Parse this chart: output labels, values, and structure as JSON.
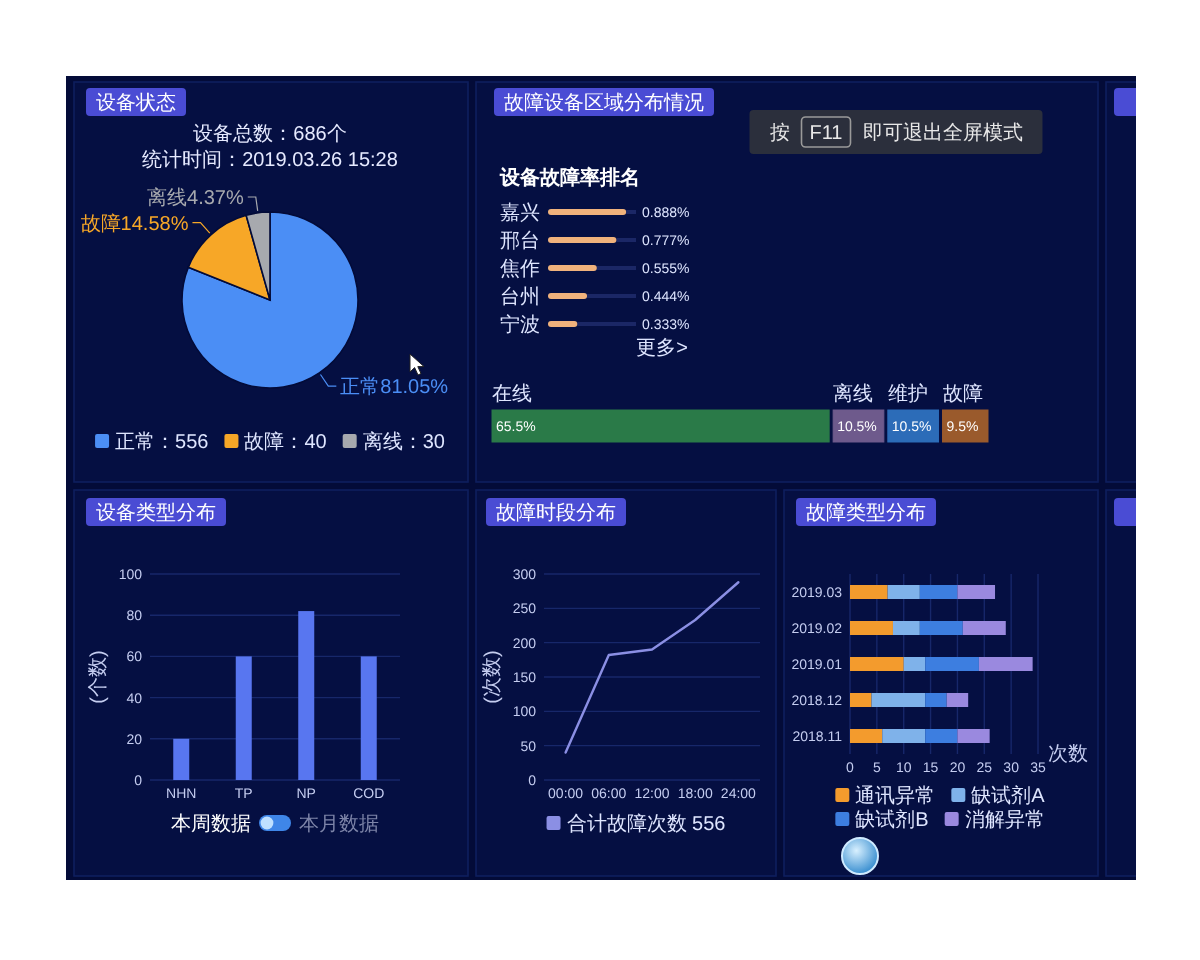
{
  "chart_data": [
    {
      "type": "pie",
      "title": "设备状态",
      "subtitle": "设备总数：686个",
      "categories": [
        "正常",
        "故障",
        "离线"
      ],
      "values": [
        81.05,
        14.58,
        4.37
      ],
      "value_labels": [
        "81.05%",
        "14.58%",
        "4.37%"
      ],
      "colors": [
        "#4b8ef5",
        "#f7a727",
        "#a7a9ae"
      ],
      "legend": "bottom",
      "annotations": [
        "统计时间：2019.03.26 15:28",
        "：556",
        "：40",
        "：30"
      ]
    },
    {
      "type": "bar",
      "orientation": "horizontal",
      "title": "故障设备区域分布情况",
      "subtitle": "设备故障率排名",
      "categories": [
        "嘉兴",
        "邢台",
        "焦作",
        "台州",
        "宁波"
      ],
      "values": [
        0.888,
        0.777,
        0.555,
        0.444,
        0.333
      ],
      "value_labels": [
        "0.888%",
        "0.777%",
        "0.555%",
        "0.444%",
        "0.333%"
      ],
      "color": "#f0b27c",
      "xlim": [
        0,
        1
      ],
      "annotations": [
        "更多>"
      ]
    },
    {
      "type": "bar",
      "orientation": "horizontal",
      "stacked": true,
      "categories": [
        null
      ],
      "series": [
        {
          "name": "在线",
          "color": "#2a7a48",
          "values": [
            65.5
          ],
          "value_labels": [
            "65.5%"
          ]
        },
        {
          "name": "离线",
          "color": "#6e5a8c",
          "values": [
            10.5
          ],
          "value_labels": [
            "10.5%"
          ]
        },
        {
          "name": "维护",
          "color": "#2c6cb8",
          "values": [
            10.5
          ],
          "value_labels": [
            "10.5%"
          ]
        },
        {
          "name": "故障",
          "color": "#9a5a2c",
          "values": [
            9.5
          ],
          "value_labels": [
            "9.5%"
          ]
        }
      ]
    },
    {
      "type": "other",
      "annotations": [
        "按",
        "F11",
        "即可退出全屏模式"
      ]
    },
    {
      "type": "bar",
      "title": "设备类型分布",
      "ylabel": "(个数)",
      "categories": [
        "NHN",
        "TP",
        "NP",
        "COD"
      ],
      "values": [
        20,
        60,
        82,
        60
      ],
      "color": "#5876f0",
      "ylim": [
        0,
        100
      ],
      "yticks": [
        0,
        20,
        40,
        60,
        80,
        100
      ],
      "grid": "y",
      "annotations": [
        "本周数据",
        "本月数据"
      ]
    },
    {
      "type": "line",
      "title": "故障时段分布",
      "ylabel": "(次数)",
      "categories": [
        "00:00",
        "06:00",
        "12:00",
        "18:00",
        "24:00"
      ],
      "series": [
        {
          "name": "合计故障次数 556",
          "color": "#8b8fe4",
          "values": [
            40,
            182,
            190,
            233,
            288
          ]
        }
      ],
      "ylim": [
        0,
        300
      ],
      "yticks": [
        0,
        50,
        100,
        150,
        200,
        250,
        300
      ],
      "grid": "y",
      "legend": "bottom"
    },
    {
      "type": "bar",
      "orientation": "horizontal",
      "stacked": true,
      "title": "故障类型分布",
      "xlabel": "次数",
      "categories": [
        "2019.03",
        "2019.02",
        "2019.01",
        "2018.12",
        "2018.11"
      ],
      "series": [
        {
          "name": "通讯异常",
          "color": "#f39b2d",
          "values": [
            7,
            8,
            10,
            4,
            6
          ]
        },
        {
          "name": "缺试剂A",
          "color": "#7fb2ea",
          "values": [
            6,
            5,
            4,
            10,
            8
          ]
        },
        {
          "name": "缺试剂B",
          "color": "#3d7ee0",
          "values": [
            7,
            8,
            10,
            4,
            6
          ]
        },
        {
          "name": "消解异常",
          "color": "#9a89df",
          "values": [
            7,
            8,
            10,
            4,
            6
          ]
        }
      ],
      "xlim": [
        0,
        35
      ],
      "xticks": [
        0,
        5,
        10,
        15,
        20,
        25,
        30,
        35
      ],
      "grid": "x",
      "legend": "bottom"
    }
  ]
}
